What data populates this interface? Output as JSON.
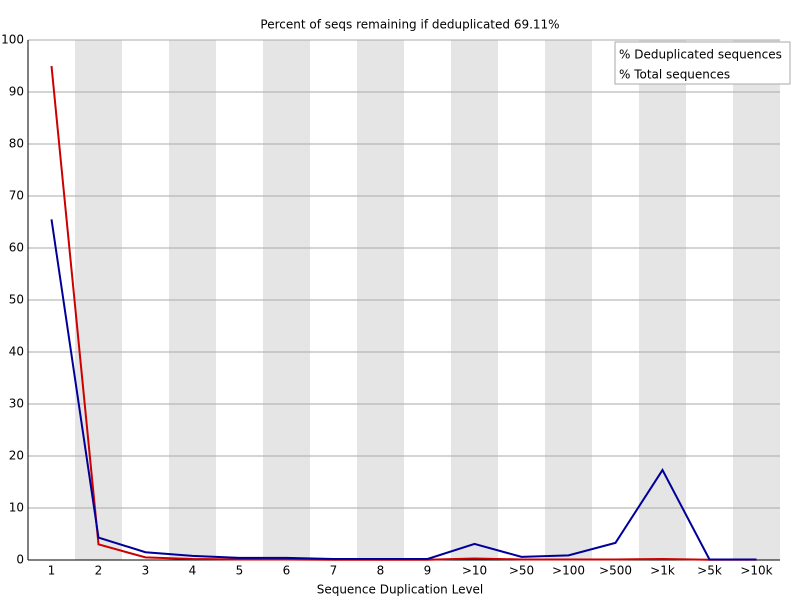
{
  "chart_data": {
    "type": "line",
    "title": "Percent of seqs remaining if deduplicated 69.11%",
    "x_label": "Sequence Duplication Level",
    "categories": [
      "1",
      "2",
      "3",
      "4",
      "5",
      "6",
      "7",
      "8",
      "9",
      ">10",
      ">50",
      ">100",
      ">500",
      ">1k",
      ">5k",
      ">10k"
    ],
    "series": [
      {
        "name": "% Deduplicated sequences",
        "color": "#cc0000",
        "values": [
          95,
          3,
          0.5,
          0.2,
          0.1,
          0.1,
          0.05,
          0.05,
          0.05,
          0.3,
          0.1,
          0.1,
          0.1,
          0.2,
          0.05,
          0.05
        ]
      },
      {
        "name": "% Total sequences",
        "color": "#000099",
        "values": [
          65.5,
          4.3,
          1.5,
          0.8,
          0.4,
          0.4,
          0.2,
          0.2,
          0.2,
          3.1,
          0.6,
          0.9,
          3.3,
          17.3,
          0.1,
          0.1
        ]
      }
    ],
    "ylim": [
      0,
      100
    ],
    "yticks": [
      0,
      10,
      20,
      30,
      40,
      50,
      60,
      70,
      80,
      90,
      100
    ],
    "grid": true,
    "legend": "top-right"
  }
}
